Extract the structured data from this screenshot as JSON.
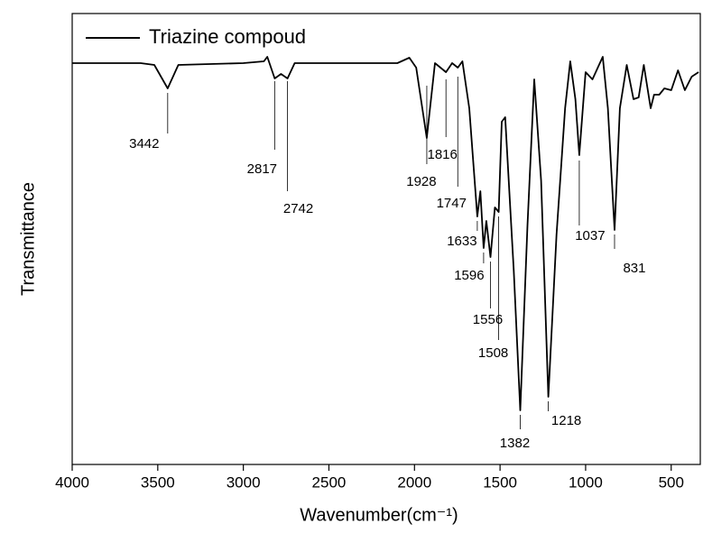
{
  "chart_data": {
    "type": "line",
    "x_label": "Wavenumber(cm⁻¹)",
    "y_label": "Transmittance",
    "x": [
      4000,
      3600,
      3520,
      3442,
      3380,
      3000,
      2880,
      2860,
      2817,
      2780,
      2742,
      2700,
      2100,
      2030,
      1990,
      1928,
      1880,
      1816,
      1780,
      1747,
      1720,
      1680,
      1633,
      1615,
      1596,
      1580,
      1556,
      1530,
      1508,
      1490,
      1470,
      1420,
      1382,
      1340,
      1300,
      1260,
      1218,
      1170,
      1120,
      1090,
      1060,
      1037,
      1000,
      960,
      900,
      870,
      831,
      800,
      760,
      720,
      690,
      660,
      620,
      600,
      570,
      540,
      500,
      460,
      420,
      380,
      340
    ],
    "series": [
      {
        "name": "Triazine compoud",
        "color": "#000000",
        "values": [
          89,
          89,
          88.6,
          83.4,
          88.6,
          89,
          89.4,
          90.4,
          85.6,
          86.6,
          85.6,
          89,
          89,
          90.2,
          88,
          72.4,
          89,
          87,
          89,
          88,
          89.4,
          79,
          55,
          60.6,
          48,
          54,
          46,
          57,
          56,
          76,
          77,
          43,
          12,
          53,
          85.4,
          63,
          15,
          51,
          79,
          89.4,
          81,
          68.6,
          87,
          85.4,
          90.4,
          79,
          52,
          79,
          88.6,
          81,
          81.4,
          88.6,
          79,
          82,
          82,
          83.4,
          83,
          87.4,
          83,
          86,
          87
        ]
      }
    ],
    "peaks": [
      3442,
      2817,
      2742,
      1928,
      1816,
      1747,
      1633,
      1596,
      1556,
      1508,
      1382,
      1218,
      1037,
      831
    ],
    "xlim": [
      4000,
      330
    ],
    "ylim": [
      0,
      100
    ],
    "xticks": [
      4000,
      3500,
      3000,
      2500,
      2000,
      1500,
      1000,
      500
    ],
    "legend": "upper left"
  }
}
